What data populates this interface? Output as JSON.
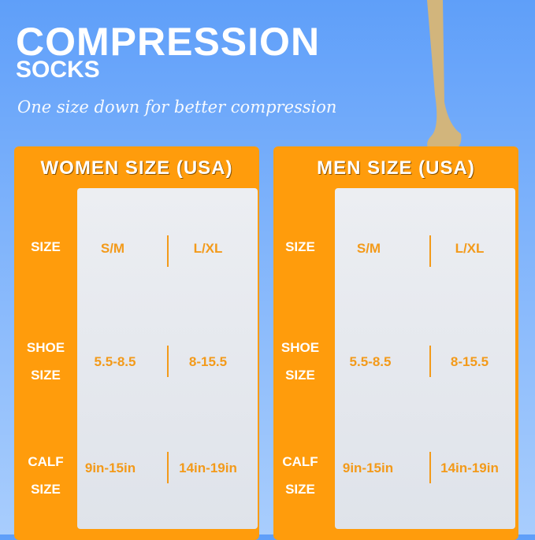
{
  "header": {
    "title": "COMPRESSION",
    "subtitle": "SOCKS",
    "tagline": "One size down for better compression"
  },
  "colors": {
    "orange": "#ff9c0c",
    "value_text": "#f39a1a",
    "background": "#6aa6fa"
  },
  "row_labels": {
    "size": "SIZE",
    "shoe_1": "SHOE",
    "shoe_2": "SIZE",
    "calf_1": "CALF",
    "calf_2": "SIZE"
  },
  "women": {
    "title": "WOMEN SIZE (USA)",
    "size": [
      "S/M",
      "L/XL"
    ],
    "shoe": [
      "5.5-8.5",
      "8-15.5"
    ],
    "calf": [
      "9in-15in",
      "14in-19in"
    ]
  },
  "men": {
    "title": "MEN SIZE (USA)",
    "size": [
      "S/M",
      "L/XL"
    ],
    "shoe": [
      "5.5-8.5",
      "8-15.5"
    ],
    "calf": [
      "9in-15in",
      "14in-19in"
    ]
  }
}
